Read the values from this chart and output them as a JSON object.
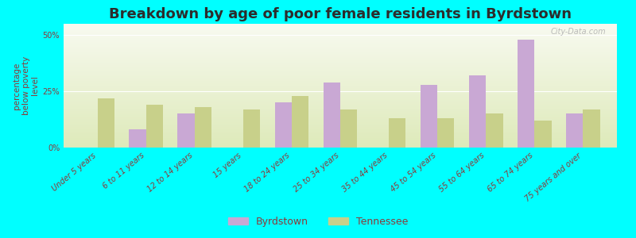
{
  "title": "Breakdown by age of poor female residents in Byrdstown",
  "ylabel": "percentage\nbelow poverty\nlevel",
  "categories": [
    "Under 5 years",
    "6 to 11 years",
    "12 to 14 years",
    "15 years",
    "18 to 24 years",
    "25 to 34 years",
    "35 to 44 years",
    "45 to 54 years",
    "55 to 64 years",
    "65 to 74 years",
    "75 years and over"
  ],
  "byrdstown": [
    0,
    8,
    15,
    0,
    20,
    29,
    0,
    28,
    32,
    48,
    15
  ],
  "tennessee": [
    22,
    19,
    18,
    17,
    23,
    17,
    13,
    13,
    15,
    12,
    17
  ],
  "ylim": [
    0,
    55
  ],
  "ytick_labels": [
    "0%",
    "25%",
    "50%"
  ],
  "ytick_vals": [
    0,
    25,
    50
  ],
  "byrdstown_color": "#c9a8d4",
  "tennessee_color": "#c8d08a",
  "outer_bg_color": "#00ffff",
  "gradient_top": "#f8faf0",
  "gradient_bottom": "#deeaba",
  "title_color": "#2c2c2c",
  "axis_label_color": "#8b3a3a",
  "tick_label_color": "#8b3a3a",
  "bar_width": 0.35,
  "legend_byrdstown": "Byrdstown",
  "legend_tennessee": "Tennessee",
  "watermark": "City-Data.com",
  "title_fontsize": 13,
  "ylabel_fontsize": 7.5,
  "tick_fontsize": 7,
  "legend_fontsize": 9,
  "figwidth": 8.0,
  "figheight": 3.0,
  "dpi": 100
}
